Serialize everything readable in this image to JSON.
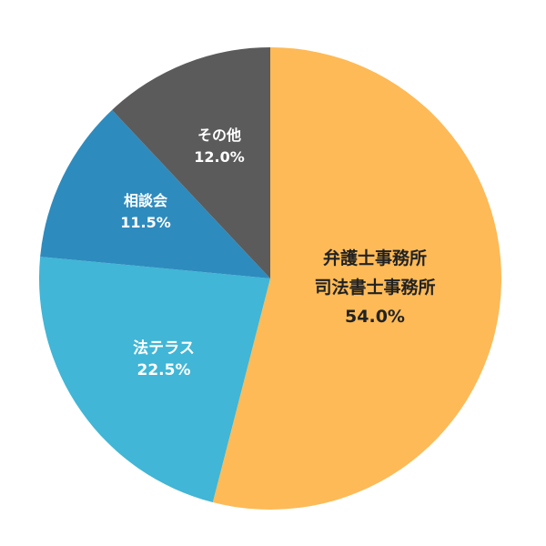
{
  "chart_data": {
    "type": "pie",
    "title": "",
    "start_angle_deg": 0,
    "direction": "clockwise",
    "slices": [
      {
        "label": "弁護士事務所\n司法書士事務所",
        "lines": [
          "弁護士事務所",
          "司法書士事務所"
        ],
        "value": 54.0,
        "display": "54.0%",
        "color": "#FDBA57",
        "text_color": "#222222"
      },
      {
        "label": "法テラス",
        "lines": [
          "法テラス"
        ],
        "value": 22.5,
        "display": "22.5%",
        "color": "#41B6D6",
        "text_color": "#ffffff"
      },
      {
        "label": "相談会",
        "lines": [
          "相談会"
        ],
        "value": 11.5,
        "display": "11.5%",
        "color": "#2E8BBE",
        "text_color": "#ffffff"
      },
      {
        "label": "その他",
        "lines": [
          "その他"
        ],
        "value": 12.0,
        "display": "12.0%",
        "color": "#5B5B5B",
        "text_color": "#ffffff"
      }
    ],
    "legend": "none",
    "grid": false
  }
}
